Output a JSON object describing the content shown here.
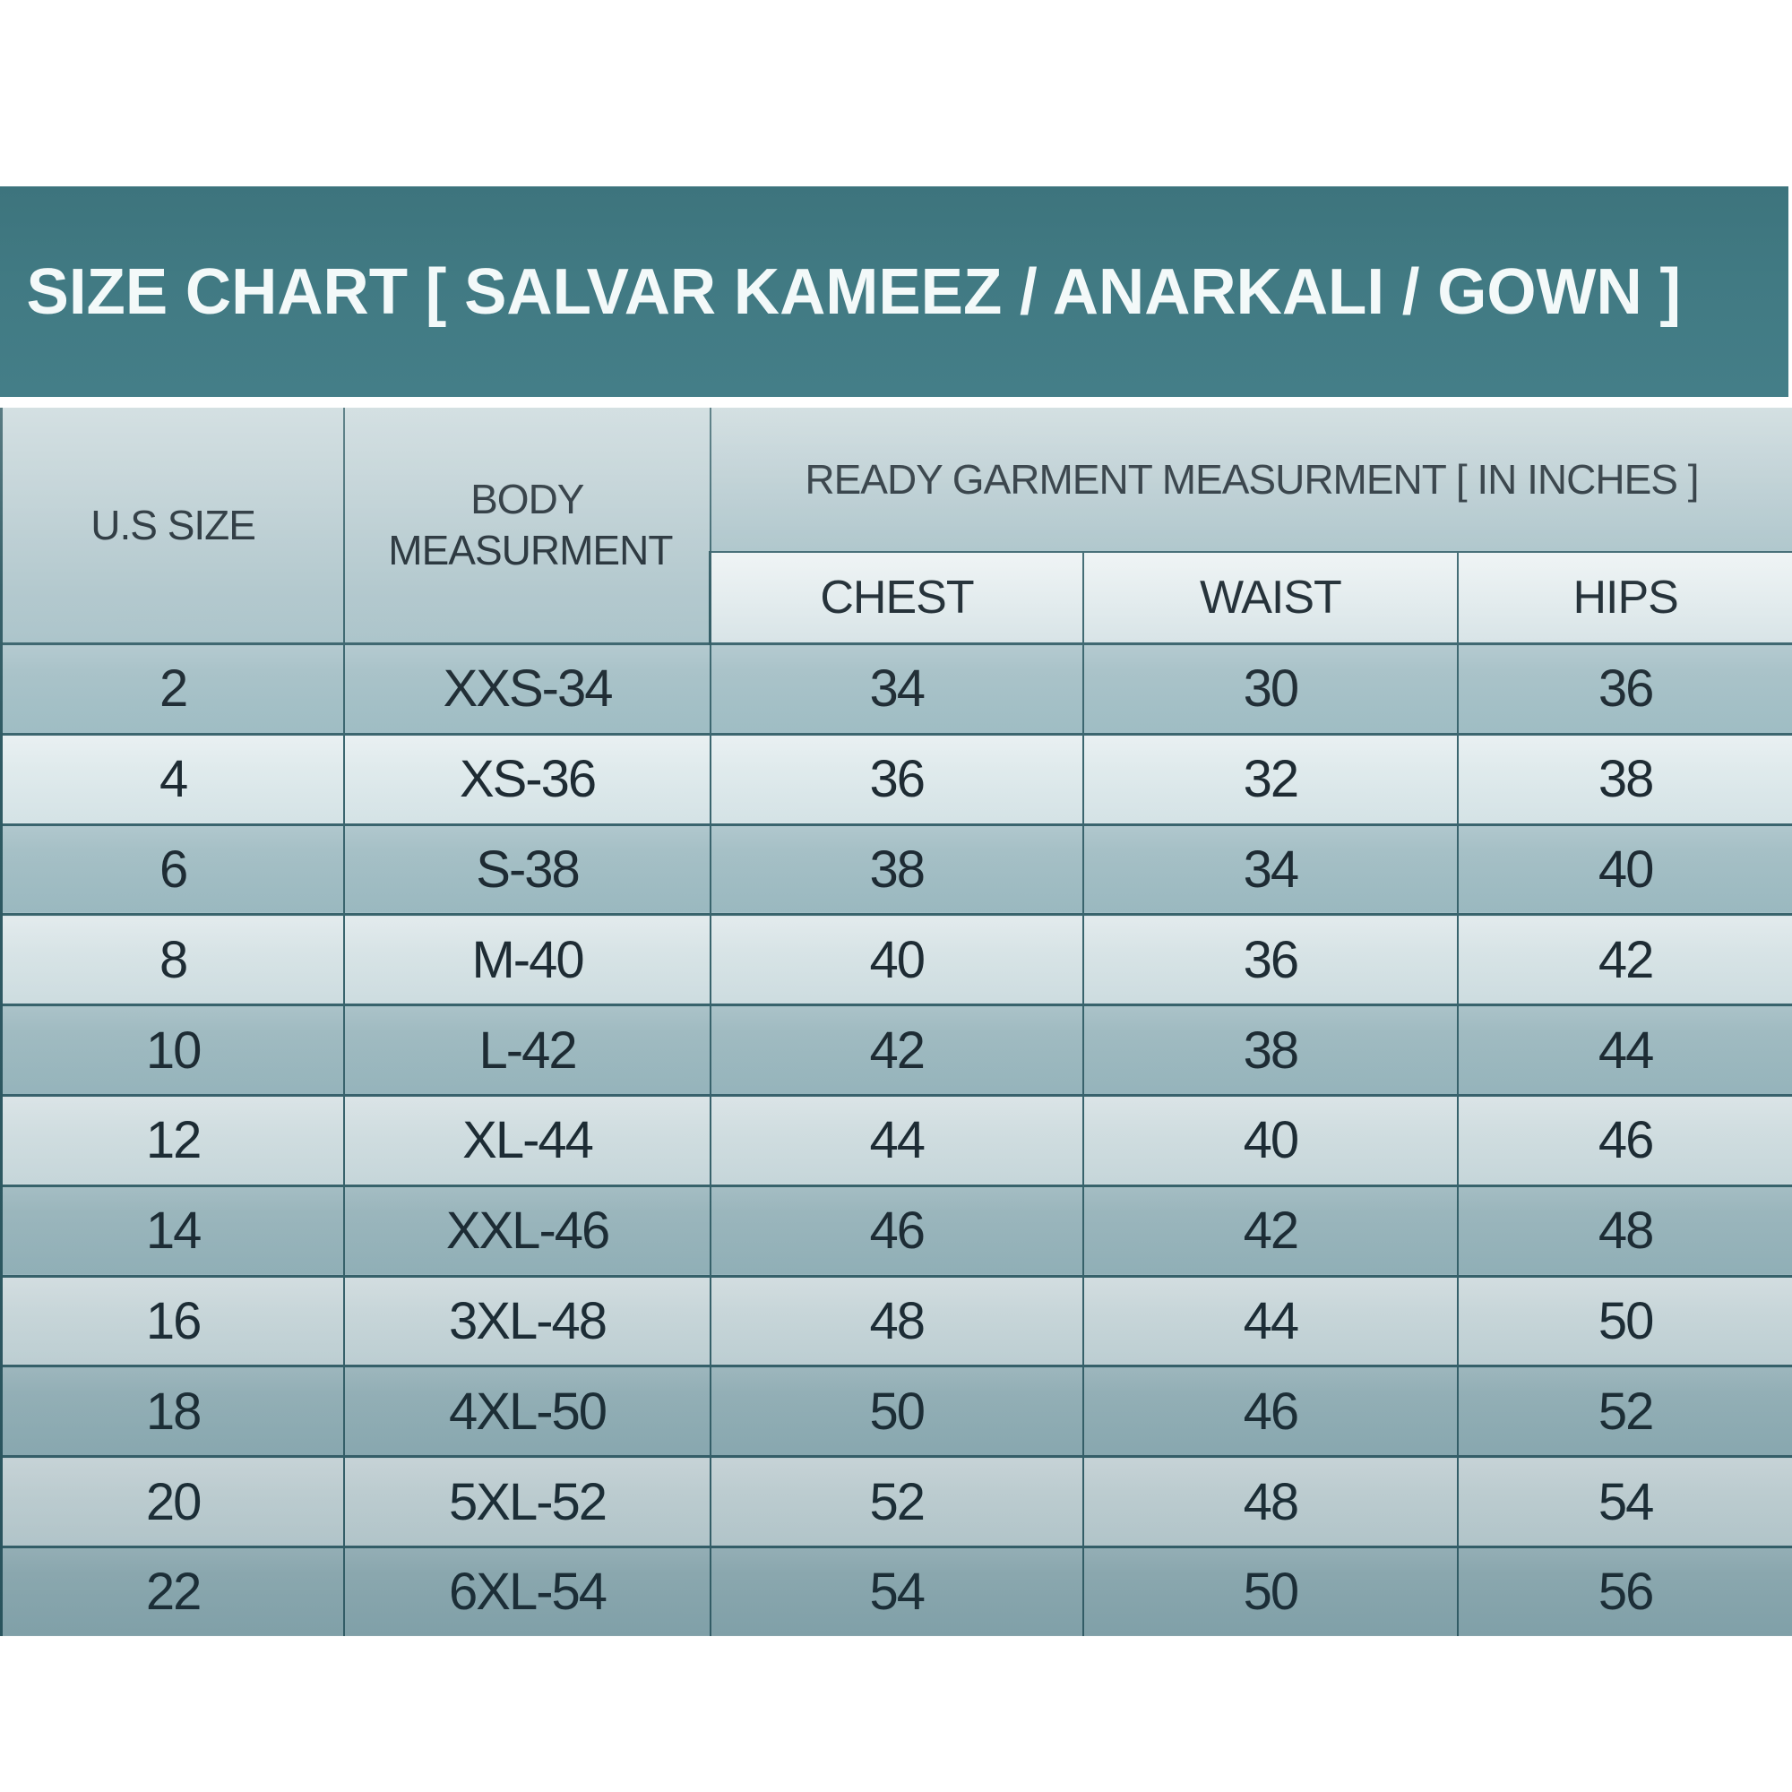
{
  "page": {
    "title": "SIZE CHART [ SALVAR KAMEEZ / ANARKALI / GOWN ]"
  },
  "table": {
    "header": {
      "us_size": "U.S SIZE",
      "body_measurement": "BODY MEASURMENT",
      "garment_group": "READY GARMENT MEASURMENT [ IN INCHES ]",
      "sub_columns": [
        "CHEST",
        "WAIST",
        "HIPS"
      ]
    },
    "rows": [
      {
        "us_size": "2",
        "body": "XXS-34",
        "chest": "34",
        "waist": "30",
        "hips": "36"
      },
      {
        "us_size": "4",
        "body": "XS-36",
        "chest": "36",
        "waist": "32",
        "hips": "38"
      },
      {
        "us_size": "6",
        "body": "S-38",
        "chest": "38",
        "waist": "34",
        "hips": "40"
      },
      {
        "us_size": "8",
        "body": "M-40",
        "chest": "40",
        "waist": "36",
        "hips": "42"
      },
      {
        "us_size": "10",
        "body": "L-42",
        "chest": "42",
        "waist": "38",
        "hips": "44"
      },
      {
        "us_size": "12",
        "body": "XL-44",
        "chest": "44",
        "waist": "40",
        "hips": "46"
      },
      {
        "us_size": "14",
        "body": "XXL-46",
        "chest": "46",
        "waist": "42",
        "hips": "48"
      },
      {
        "us_size": "16",
        "body": "3XL-48",
        "chest": "48",
        "waist": "44",
        "hips": "50"
      },
      {
        "us_size": "18",
        "body": "4XL-50",
        "chest": "50",
        "waist": "46",
        "hips": "52"
      },
      {
        "us_size": "20",
        "body": "5XL-52",
        "chest": "52",
        "waist": "48",
        "hips": "54"
      },
      {
        "us_size": "22",
        "body": "6XL-54",
        "chest": "54",
        "waist": "50",
        "hips": "56"
      }
    ]
  },
  "theme": {
    "title_bar_bg": "#417a83",
    "title_text": "#f3f9f9",
    "header_bg": "#b7cbd0",
    "subheader_bg": "#e2ebed",
    "row_dark": "#a8c2c8",
    "row_light": "#dfeaec",
    "border": "#3a656e",
    "text": "#1e2b33"
  }
}
